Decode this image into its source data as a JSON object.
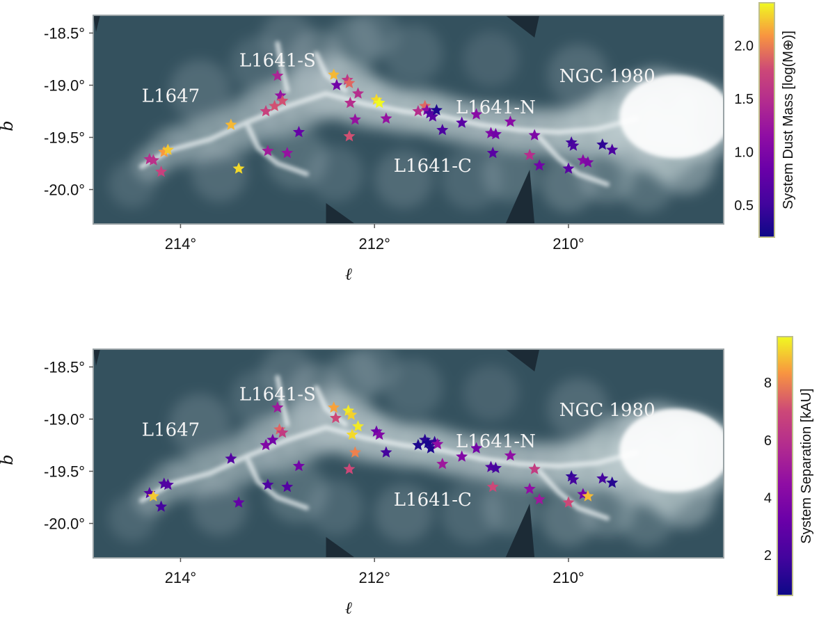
{
  "chart_data": [
    {
      "type": "scatter",
      "background": "greyscale dust emission map",
      "xlabel": "ℓ",
      "ylabel": "b",
      "xlim": [
        214.9,
        208.4
      ],
      "ylim": [
        -20.33,
        -18.33
      ],
      "xticks": [
        {
          "value": 214,
          "label": "214°"
        },
        {
          "value": 212,
          "label": "212°"
        },
        {
          "value": 210,
          "label": "210°"
        }
      ],
      "yticks": [
        {
          "value": -18.5,
          "label": "-18.5°"
        },
        {
          "value": -19.0,
          "label": "-19.0°"
        },
        {
          "value": -19.5,
          "label": "-19.5°"
        },
        {
          "value": -20.0,
          "label": "-20.0°"
        }
      ],
      "region_labels": [
        {
          "text": "L1641-S",
          "l": 213.0,
          "b": -18.82
        },
        {
          "text": "L1647",
          "l": 214.1,
          "b": -19.16
        },
        {
          "text": "NGC 1980",
          "l": 209.6,
          "b": -18.97
        },
        {
          "text": "L1641-N",
          "l": 210.75,
          "b": -19.27
        },
        {
          "text": "L1641-C",
          "l": 211.4,
          "b": -19.83
        }
      ],
      "colorbar": {
        "label": "System Dust Mass [log(M⊕)]",
        "range": [
          0.2,
          2.4
        ],
        "ticks": [
          0.5,
          1.0,
          1.5,
          2.0
        ],
        "colormap": "plasma",
        "placement": "right"
      },
      "points": [
        {
          "l": 214.32,
          "b": -19.71,
          "c": 1.5
        },
        {
          "l": 214.28,
          "b": -19.72,
          "c": 1.55
        },
        {
          "l": 214.2,
          "b": -19.83,
          "c": 1.7
        },
        {
          "l": 214.17,
          "b": -19.64,
          "c": 2.1
        },
        {
          "l": 214.13,
          "b": -19.62,
          "c": 2.25
        },
        {
          "l": 213.48,
          "b": -19.38,
          "c": 2.2
        },
        {
          "l": 213.4,
          "b": -19.8,
          "c": 2.3
        },
        {
          "l": 213.12,
          "b": -19.25,
          "c": 1.7
        },
        {
          "l": 213.1,
          "b": -19.63,
          "c": 1.3
        },
        {
          "l": 213.03,
          "b": -19.2,
          "c": 1.8
        },
        {
          "l": 213.0,
          "b": -18.91,
          "c": 1.4
        },
        {
          "l": 212.97,
          "b": -19.1,
          "c": 1.2
        },
        {
          "l": 212.95,
          "b": -19.15,
          "c": 1.8
        },
        {
          "l": 212.9,
          "b": -19.65,
          "c": 1.2
        },
        {
          "l": 212.78,
          "b": -19.45,
          "c": 0.8
        },
        {
          "l": 212.42,
          "b": -18.9,
          "c": 2.2
        },
        {
          "l": 212.39,
          "b": -19.0,
          "c": 0.9
        },
        {
          "l": 212.28,
          "b": -18.95,
          "c": 1.6
        },
        {
          "l": 212.26,
          "b": -18.98,
          "c": 1.9
        },
        {
          "l": 212.25,
          "b": -19.17,
          "c": 1.5
        },
        {
          "l": 212.26,
          "b": -19.49,
          "c": 1.8
        },
        {
          "l": 212.2,
          "b": -19.33,
          "c": 1.2
        },
        {
          "l": 212.17,
          "b": -19.08,
          "c": 1.5
        },
        {
          "l": 211.98,
          "b": -19.14,
          "c": 2.3
        },
        {
          "l": 211.95,
          "b": -19.17,
          "c": 2.4
        },
        {
          "l": 211.88,
          "b": -19.32,
          "c": 1.2
        },
        {
          "l": 211.55,
          "b": -19.25,
          "c": 1.5
        },
        {
          "l": 211.48,
          "b": -19.2,
          "c": 1.9
        },
        {
          "l": 211.46,
          "b": -19.24,
          "c": 1.1
        },
        {
          "l": 211.43,
          "b": -19.27,
          "c": 0.6
        },
        {
          "l": 211.4,
          "b": -19.3,
          "c": 0.7
        },
        {
          "l": 211.36,
          "b": -19.24,
          "c": 0.3
        },
        {
          "l": 211.3,
          "b": -19.43,
          "c": 0.6
        },
        {
          "l": 211.1,
          "b": -19.36,
          "c": 0.7
        },
        {
          "l": 210.95,
          "b": -19.28,
          "c": 1.1
        },
        {
          "l": 210.8,
          "b": -19.46,
          "c": 1.0
        },
        {
          "l": 210.78,
          "b": -19.65,
          "c": 0.7
        },
        {
          "l": 210.75,
          "b": -19.47,
          "c": 0.9
        },
        {
          "l": 210.6,
          "b": -19.35,
          "c": 1.1
        },
        {
          "l": 210.4,
          "b": -19.67,
          "c": 1.5
        },
        {
          "l": 210.35,
          "b": -19.48,
          "c": 1.0
        },
        {
          "l": 210.3,
          "b": -19.77,
          "c": 0.9
        },
        {
          "l": 210.0,
          "b": -19.8,
          "c": 0.7
        },
        {
          "l": 209.97,
          "b": -19.55,
          "c": 0.5
        },
        {
          "l": 209.95,
          "b": -19.58,
          "c": 0.6
        },
        {
          "l": 209.85,
          "b": -19.72,
          "c": 1.1
        },
        {
          "l": 209.8,
          "b": -19.74,
          "c": 1.0
        },
        {
          "l": 209.65,
          "b": -19.57,
          "c": 0.4
        },
        {
          "l": 209.55,
          "b": -19.62,
          "c": 0.6
        }
      ]
    },
    {
      "type": "scatter",
      "background": "greyscale dust emission map",
      "xlabel": "ℓ",
      "ylabel": "b",
      "xlim": [
        214.9,
        208.4
      ],
      "ylim": [
        -20.33,
        -18.33
      ],
      "xticks": [
        {
          "value": 214,
          "label": "214°"
        },
        {
          "value": 212,
          "label": "212°"
        },
        {
          "value": 210,
          "label": "210°"
        }
      ],
      "yticks": [
        {
          "value": -18.5,
          "label": "-18.5°"
        },
        {
          "value": -19.0,
          "label": "-19.0°"
        },
        {
          "value": -19.5,
          "label": "-19.5°"
        },
        {
          "value": -20.0,
          "label": "-20.0°"
        }
      ],
      "region_labels": [
        {
          "text": "L1641-S",
          "l": 213.0,
          "b": -18.82
        },
        {
          "text": "L1647",
          "l": 214.1,
          "b": -19.16
        },
        {
          "text": "NGC 1980",
          "l": 209.6,
          "b": -18.97
        },
        {
          "text": "L1641-N",
          "l": 210.75,
          "b": -19.27
        },
        {
          "text": "L1641-C",
          "l": 211.4,
          "b": -19.83
        }
      ],
      "colorbar": {
        "label": "System Separation [kAU]",
        "range": [
          0.6,
          9.6
        ],
        "ticks": [
          2,
          4,
          6,
          8
        ],
        "colormap": "plasma",
        "placement": "right"
      },
      "points": [
        {
          "l": 214.32,
          "b": -19.71,
          "c": 2.5
        },
        {
          "l": 214.28,
          "b": -19.74,
          "c": 9.0
        },
        {
          "l": 214.2,
          "b": -19.84,
          "c": 2.0
        },
        {
          "l": 214.17,
          "b": -19.62,
          "c": 2.3
        },
        {
          "l": 214.13,
          "b": -19.63,
          "c": 2.5
        },
        {
          "l": 213.48,
          "b": -19.38,
          "c": 2.5
        },
        {
          "l": 213.4,
          "b": -19.8,
          "c": 3.0
        },
        {
          "l": 213.12,
          "b": -19.25,
          "c": 4.0
        },
        {
          "l": 213.1,
          "b": -19.63,
          "c": 2.3
        },
        {
          "l": 213.05,
          "b": -19.2,
          "c": 3.5
        },
        {
          "l": 213.0,
          "b": -18.89,
          "c": 5.0
        },
        {
          "l": 212.98,
          "b": -19.1,
          "c": 7.5
        },
        {
          "l": 212.95,
          "b": -19.13,
          "c": 6.5
        },
        {
          "l": 212.9,
          "b": -19.65,
          "c": 2.5
        },
        {
          "l": 212.78,
          "b": -19.45,
          "c": 3.5
        },
        {
          "l": 212.42,
          "b": -18.89,
          "c": 8.5
        },
        {
          "l": 212.4,
          "b": -18.99,
          "c": 7.0
        },
        {
          "l": 212.27,
          "b": -18.92,
          "c": 9.4
        },
        {
          "l": 212.24,
          "b": -18.96,
          "c": 9.1
        },
        {
          "l": 212.23,
          "b": -19.15,
          "c": 9.2
        },
        {
          "l": 212.26,
          "b": -19.48,
          "c": 7.0
        },
        {
          "l": 212.2,
          "b": -19.32,
          "c": 8.0
        },
        {
          "l": 212.17,
          "b": -19.07,
          "c": 9.4
        },
        {
          "l": 211.98,
          "b": -19.12,
          "c": 3.3
        },
        {
          "l": 211.95,
          "b": -19.15,
          "c": 4.0
        },
        {
          "l": 211.88,
          "b": -19.32,
          "c": 2.0
        },
        {
          "l": 211.55,
          "b": -19.25,
          "c": 1.0
        },
        {
          "l": 211.48,
          "b": -19.2,
          "c": 1.3
        },
        {
          "l": 211.45,
          "b": -19.23,
          "c": 0.9
        },
        {
          "l": 211.42,
          "b": -19.28,
          "c": 1.0
        },
        {
          "l": 211.38,
          "b": -19.22,
          "c": 1.5
        },
        {
          "l": 211.35,
          "b": -19.24,
          "c": 4.5
        },
        {
          "l": 211.3,
          "b": -19.43,
          "c": 5.0
        },
        {
          "l": 211.1,
          "b": -19.36,
          "c": 4.0
        },
        {
          "l": 210.95,
          "b": -19.28,
          "c": 3.5
        },
        {
          "l": 210.8,
          "b": -19.46,
          "c": 2.5
        },
        {
          "l": 210.78,
          "b": -19.65,
          "c": 7.0
        },
        {
          "l": 210.75,
          "b": -19.47,
          "c": 2.0
        },
        {
          "l": 210.6,
          "b": -19.35,
          "c": 4.5
        },
        {
          "l": 210.4,
          "b": -19.67,
          "c": 4.5
        },
        {
          "l": 210.35,
          "b": -19.48,
          "c": 6.5
        },
        {
          "l": 210.3,
          "b": -19.77,
          "c": 5.0
        },
        {
          "l": 210.0,
          "b": -19.8,
          "c": 7.0
        },
        {
          "l": 209.97,
          "b": -19.55,
          "c": 1.5
        },
        {
          "l": 209.95,
          "b": -19.58,
          "c": 2.0
        },
        {
          "l": 209.85,
          "b": -19.72,
          "c": 3.5
        },
        {
          "l": 209.8,
          "b": -19.74,
          "c": 8.8
        },
        {
          "l": 209.65,
          "b": -19.57,
          "c": 2.0
        },
        {
          "l": 209.55,
          "b": -19.61,
          "c": 1.2
        }
      ]
    }
  ]
}
